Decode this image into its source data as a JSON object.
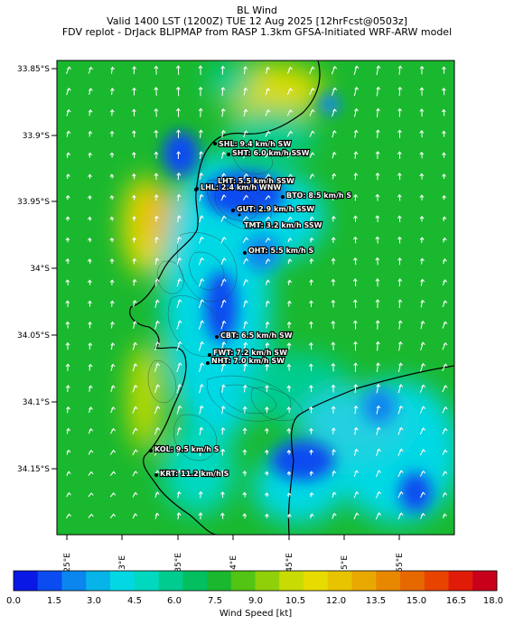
{
  "title": {
    "line1": "BL Wind",
    "line2": "Valid 1400 LST (1200Z) TUE 12 Aug 2025 [12hrFcst@0503z]",
    "line3": "FDV replot - DrJack BLIPMAP from RASP 1.3km GFSA-Initiated WRF-ARW model"
  },
  "lat_labels": [
    "33.85°S",
    "33.9°S",
    "33.95°S",
    "34°S",
    "34.05°S",
    "34.1°S",
    "34.15°S"
  ],
  "lon_labels": [
    "18.25°E",
    "18.3°E",
    "18.35°E",
    "18.4°E",
    "18.45°E",
    "18.5°E",
    "18.55°E"
  ],
  "stations": [
    {
      "label": "SHL: 9.4 km/h SW"
    },
    {
      "label": "SHT: 6.0 km/h SSW"
    },
    {
      "label": "LHT: 5.5 km/h SSW"
    },
    {
      "label": "LHL: 2.4 km/h WNW"
    },
    {
      "label": "BTO: 8.5 km/h S"
    },
    {
      "label": "GUT: 2.9 km/h SSW"
    },
    {
      "label": "TMT: 3.2 km/h SSW"
    },
    {
      "label": "OHT: 5.5 km/h S"
    },
    {
      "label": "CBT: 6.5 km/h SW"
    },
    {
      "label": "FWT: 7.2 km/h SW"
    },
    {
      "label": "NHT: 7.0 km/h SW"
    },
    {
      "label": "KOL: 9.5 km/h S"
    },
    {
      "label": "KRT: 11.2 km/h S"
    }
  ],
  "colorbar": {
    "ticks": [
      "0.0",
      "1.5",
      "3.0",
      "4.5",
      "6.0",
      "7.5",
      "9.0",
      "10.5",
      "12.0",
      "13.5",
      "15.0",
      "16.5",
      "18.0"
    ],
    "label": "Wind Speed [kt]",
    "colors": [
      "#0a18e6",
      "#0a4cf0",
      "#0a86ee",
      "#06b4ea",
      "#02d8e4",
      "#00d8c0",
      "#00cc90",
      "#02c060",
      "#1ab82e",
      "#52c414",
      "#90d00a",
      "#c8dc04",
      "#e6dc00",
      "#e8c400",
      "#e8a800",
      "#e88800",
      "#e86800",
      "#e84400",
      "#e01c08",
      "#c8001a"
    ]
  },
  "wind_field": {
    "speed_range_kt": [
      0,
      18
    ],
    "direction_from": "S",
    "arrow_color": "#ffffff"
  }
}
